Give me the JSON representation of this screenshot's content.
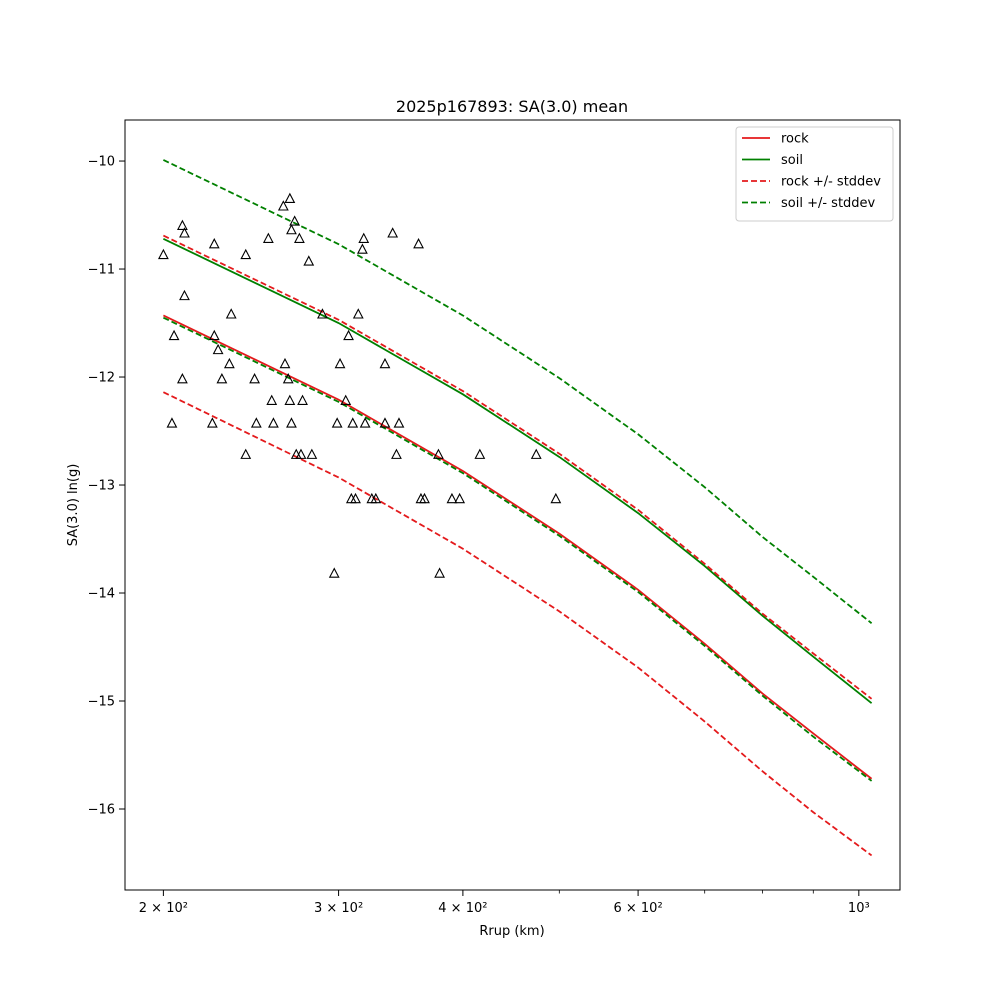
{
  "chart_data": {
    "type": "line",
    "title": "2025p167893: SA(3.0) mean",
    "xlabel": "Rrup (km)",
    "ylabel": "SA(3.0) ln(g)",
    "xscale": "log",
    "xlim": [
      183,
      1100
    ],
    "ylim": [
      -16.75,
      -9.62
    ],
    "grid": false,
    "legend_position": "top-right",
    "x_ticks": [
      {
        "value": 200,
        "label": "2 × 10²"
      },
      {
        "value": 300,
        "label": "3 × 10²"
      },
      {
        "value": 400,
        "label": "4 × 10²"
      },
      {
        "value": 600,
        "label": "6 × 10²"
      },
      {
        "value": 1000,
        "label": "10³"
      }
    ],
    "x_minor_ticks": [
      500,
      700,
      800,
      900
    ],
    "y_ticks": [
      {
        "value": -10,
        "label": "−10"
      },
      {
        "value": -11,
        "label": "−11"
      },
      {
        "value": -12,
        "label": "−12"
      },
      {
        "value": -13,
        "label": "−13"
      },
      {
        "value": -14,
        "label": "−14"
      },
      {
        "value": -15,
        "label": "−15"
      },
      {
        "value": -16,
        "label": "−16"
      }
    ],
    "x": [
      200,
      300,
      400,
      500,
      600,
      700,
      800,
      900,
      1030
    ],
    "series": [
      {
        "name": "rock",
        "legend": true,
        "color": "#e41a1c",
        "dash": "solid",
        "values": [
          -11.43,
          -12.21,
          -12.87,
          -13.45,
          -13.97,
          -14.47,
          -14.93,
          -15.3,
          -15.72
        ]
      },
      {
        "name": "soil",
        "legend": true,
        "color": "#008000",
        "dash": "solid",
        "values": [
          -10.72,
          -11.5,
          -12.16,
          -12.74,
          -13.26,
          -13.75,
          -14.21,
          -14.59,
          -15.02
        ]
      },
      {
        "name": "rock +/- stddev",
        "legend": true,
        "color": "#e41a1c",
        "dash": "dashed",
        "values": [
          -10.69,
          -11.47,
          -12.13,
          -12.71,
          -13.23,
          -13.73,
          -14.19,
          -14.56,
          -14.98
        ]
      },
      {
        "name": "rock +/- stddev",
        "legend": false,
        "color": "#e41a1c",
        "dash": "dashed",
        "values": [
          -12.14,
          -12.93,
          -13.59,
          -14.17,
          -14.69,
          -15.19,
          -15.65,
          -16.03,
          -16.43
        ]
      },
      {
        "name": "soil +/- stddev",
        "legend": true,
        "color": "#008000",
        "dash": "dashed",
        "values": [
          -9.99,
          -10.77,
          -11.43,
          -12.01,
          -12.53,
          -13.02,
          -13.48,
          -13.85,
          -14.28
        ]
      },
      {
        "name": "soil +/- stddev",
        "legend": false,
        "color": "#008000",
        "dash": "dashed",
        "values": [
          -11.45,
          -12.23,
          -12.89,
          -13.47,
          -13.99,
          -14.49,
          -14.95,
          -15.33,
          -15.74
        ]
      }
    ],
    "observations": {
      "marker": "triangle",
      "color": "#000000",
      "points": [
        [
          200,
          -10.87
        ],
        [
          204,
          -12.43
        ],
        [
          205,
          -11.62
        ],
        [
          209,
          -10.6
        ],
        [
          209,
          -12.02
        ],
        [
          210,
          -10.67
        ],
        [
          210,
          -11.25
        ],
        [
          224,
          -12.43
        ],
        [
          225,
          -10.77
        ],
        [
          225,
          -11.62
        ],
        [
          227,
          -11.75
        ],
        [
          229,
          -12.02
        ],
        [
          233,
          -11.88
        ],
        [
          234,
          -11.42
        ],
        [
          242,
          -12.72
        ],
        [
          242,
          -10.87
        ],
        [
          247,
          -12.02
        ],
        [
          248,
          -12.43
        ],
        [
          255,
          -10.72
        ],
        [
          257,
          -12.22
        ],
        [
          258,
          -12.43
        ],
        [
          264,
          -10.42
        ],
        [
          265,
          -11.88
        ],
        [
          267,
          -12.02
        ],
        [
          268,
          -10.35
        ],
        [
          268,
          -12.22
        ],
        [
          269,
          -10.64
        ],
        [
          269,
          -12.43
        ],
        [
          271,
          -10.56
        ],
        [
          272,
          -12.72
        ],
        [
          274,
          -10.72
        ],
        [
          275,
          -12.72
        ],
        [
          276,
          -12.22
        ],
        [
          280,
          -10.93
        ],
        [
          282,
          -12.72
        ],
        [
          289,
          -11.42
        ],
        [
          297,
          -13.82
        ],
        [
          299,
          -12.43
        ],
        [
          301,
          -11.88
        ],
        [
          305,
          -12.22
        ],
        [
          307,
          -11.62
        ],
        [
          309,
          -13.13
        ],
        [
          310,
          -12.43
        ],
        [
          312,
          -13.13
        ],
        [
          314,
          -11.42
        ],
        [
          317,
          -10.82
        ],
        [
          318,
          -10.72
        ],
        [
          319,
          -12.43
        ],
        [
          324,
          -13.13
        ],
        [
          327,
          -13.13
        ],
        [
          334,
          -11.88
        ],
        [
          334,
          -12.43
        ],
        [
          340,
          -10.67
        ],
        [
          343,
          -12.72
        ],
        [
          345,
          -12.43
        ],
        [
          361,
          -10.77
        ],
        [
          363,
          -13.13
        ],
        [
          366,
          -13.13
        ],
        [
          378,
          -12.72
        ],
        [
          379,
          -13.82
        ],
        [
          390,
          -13.13
        ],
        [
          397,
          -13.13
        ],
        [
          416,
          -12.72
        ],
        [
          474,
          -12.72
        ],
        [
          496,
          -13.13
        ]
      ]
    }
  }
}
